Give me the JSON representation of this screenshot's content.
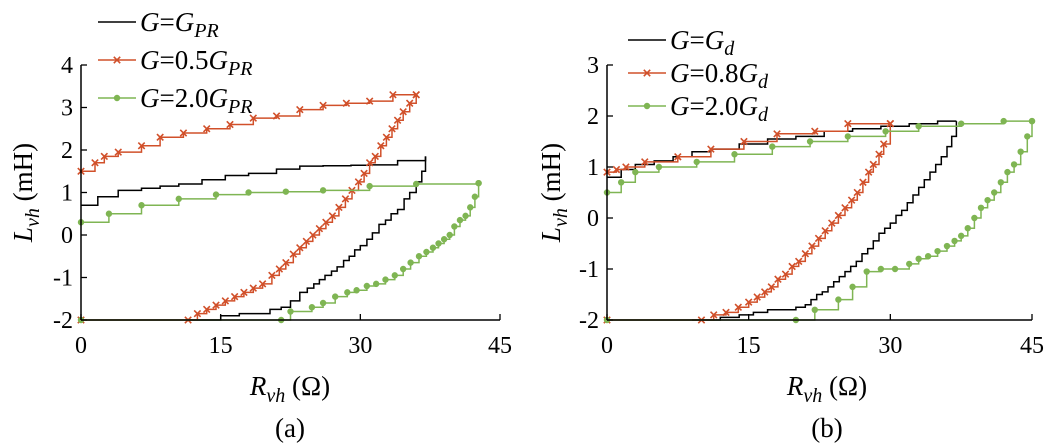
{
  "chart_data": [
    {
      "type": "line",
      "caption": "(a)",
      "xlabel": "R_vh (Ω)",
      "ylabel": "L_vh (mH)",
      "xlim": [
        0,
        45
      ],
      "ylim": [
        -2,
        4
      ],
      "x_ticks": [
        0,
        15,
        30,
        45
      ],
      "y_ticks": [
        -2,
        -1,
        0,
        1,
        2,
        3,
        4
      ],
      "legend_position": "top-left",
      "series": [
        {
          "name": "G=G_PR",
          "legend": {
            "parts": [
              [
                "G",
                "i"
              ],
              [
                "=",
                ""
              ],
              [
                "G",
                "i"
              ],
              [
                "PR",
                "sub"
              ]
            ]
          },
          "color": "#000000",
          "marker": "none",
          "upper": {
            "x": [
              0.0,
              1.8,
              4.0,
              6.5,
              8.5,
              10.5,
              13.0,
              15.5,
              18.0,
              21.0,
              23.5,
              26.0,
              29.0,
              31.0,
              34.0,
              37.0
            ],
            "y": [
              0.7,
              0.9,
              1.05,
              1.1,
              1.15,
              1.2,
              1.3,
              1.4,
              1.45,
              1.55,
              1.62,
              1.63,
              1.64,
              1.65,
              1.75,
              1.85
            ]
          },
          "lower": {
            "x": [
              37.0,
              36.6,
              36.0,
              35.3,
              34.7,
              34.0,
              33.3,
              32.7,
              32.0,
              31.3,
              30.7,
              30.0,
              29.4,
              28.8,
              28.2,
              27.5,
              26.9,
              26.2,
              25.6,
              25.0,
              24.3,
              23.5,
              22.5,
              21.5,
              20.3,
              18.5,
              17.0,
              15.0,
              11.7
            ],
            "y": [
              1.85,
              1.5,
              1.25,
              1.0,
              0.85,
              0.6,
              0.5,
              0.35,
              0.25,
              0.05,
              -0.1,
              -0.25,
              -0.35,
              -0.5,
              -0.6,
              -0.75,
              -0.85,
              -0.95,
              -1.05,
              -1.15,
              -1.25,
              -1.35,
              -1.55,
              -1.7,
              -1.75,
              -1.85,
              -1.85,
              -1.9,
              -2.0
            ]
          }
        },
        {
          "name": "G=0.5G_PR",
          "legend": {
            "parts": [
              [
                "G",
                "i"
              ],
              [
                "=0.5",
                ""
              ],
              [
                "G",
                "i"
              ],
              [
                "PR",
                "sub"
              ]
            ]
          },
          "color": "#d1502a",
          "marker": "x",
          "upper": {
            "x": [
              0.0,
              1.5,
              2.5,
              4.0,
              6.5,
              8.5,
              11.0,
              13.5,
              16.0,
              18.5,
              21.0,
              23.5,
              26.0,
              28.5,
              31.0,
              33.5,
              36.0
            ],
            "y": [
              1.5,
              1.7,
              1.85,
              1.95,
              2.1,
              2.3,
              2.4,
              2.5,
              2.6,
              2.75,
              2.8,
              2.95,
              3.05,
              3.1,
              3.15,
              3.3,
              3.3
            ]
          },
          "lower": {
            "x": [
              36.0,
              35.3,
              34.6,
              34.0,
              33.4,
              32.8,
              32.2,
              31.6,
              31.0,
              30.4,
              29.8,
              29.1,
              28.4,
              27.7,
              27.0,
              26.3,
              25.6,
              24.9,
              24.2,
              23.5,
              22.8,
              22.0,
              21.3,
              20.5,
              19.5,
              18.5,
              17.5,
              16.5,
              15.5,
              14.5,
              13.5,
              12.5,
              11.5,
              0.0
            ],
            "y": [
              3.3,
              3.1,
              2.9,
              2.7,
              2.5,
              2.3,
              2.1,
              1.85,
              1.7,
              1.45,
              1.25,
              1.05,
              0.85,
              0.65,
              0.45,
              0.3,
              0.15,
              0.0,
              -0.15,
              -0.3,
              -0.45,
              -0.65,
              -0.8,
              -0.95,
              -1.15,
              -1.25,
              -1.35,
              -1.45,
              -1.55,
              -1.65,
              -1.75,
              -1.85,
              -2.0,
              -2.0
            ]
          }
        },
        {
          "name": "G=2.0G_PR",
          "legend": {
            "parts": [
              [
                "G",
                "i"
              ],
              [
                "=2.0",
                ""
              ],
              [
                "G",
                "i"
              ],
              [
                "PR",
                "sub"
              ]
            ]
          },
          "color": "#7fb553",
          "marker": "dot",
          "upper": {
            "x": [
              0.0,
              3.0,
              6.5,
              10.5,
              14.5,
              18.0,
              22.0,
              26.0,
              31.0,
              36.0,
              42.7
            ],
            "y": [
              0.3,
              0.5,
              0.7,
              0.85,
              0.95,
              1.0,
              1.02,
              1.05,
              1.15,
              1.2,
              1.22
            ]
          },
          "lower": {
            "x": [
              42.7,
              42.3,
              41.8,
              41.3,
              40.7,
              40.1,
              39.6,
              39.0,
              38.4,
              37.8,
              37.1,
              36.3,
              35.4,
              34.6,
              33.7,
              32.7,
              31.7,
              30.7,
              29.6,
              28.6,
              27.3,
              26.0,
              24.8,
              22.5,
              21.5,
              0.0
            ],
            "y": [
              1.22,
              0.9,
              0.65,
              0.45,
              0.35,
              0.2,
              0.0,
              -0.1,
              -0.2,
              -0.3,
              -0.4,
              -0.5,
              -0.65,
              -0.8,
              -0.95,
              -1.05,
              -1.15,
              -1.2,
              -1.3,
              -1.35,
              -1.45,
              -1.6,
              -1.7,
              -1.8,
              -2.0,
              -2.0
            ]
          }
        }
      ]
    },
    {
      "type": "line",
      "caption": "(b)",
      "xlabel": "R_vh (Ω)",
      "ylabel": "L_vh (mH)",
      "xlim": [
        0,
        45
      ],
      "ylim": [
        -2,
        3
      ],
      "x_ticks": [
        0,
        15,
        30,
        45
      ],
      "y_ticks": [
        -2,
        -1,
        0,
        1,
        2,
        3
      ],
      "legend_position": "top-left",
      "series": [
        {
          "name": "G=G_d",
          "legend": {
            "parts": [
              [
                "G",
                "i"
              ],
              [
                "=",
                ""
              ],
              [
                "G",
                "i"
              ],
              [
                "d",
                "sub-i"
              ]
            ]
          },
          "color": "#000000",
          "marker": "none",
          "upper": {
            "x": [
              0.0,
              1.5,
              3.0,
              5.0,
              7.0,
              9.0,
              11.0,
              14.0,
              17.0,
              20.0,
              23.0,
              26.0,
              29.0,
              32.0,
              35.0,
              37.0
            ],
            "y": [
              0.8,
              0.95,
              1.05,
              1.12,
              1.2,
              1.3,
              1.35,
              1.45,
              1.55,
              1.6,
              1.7,
              1.75,
              1.8,
              1.85,
              1.9,
              1.9
            ]
          },
          "lower": {
            "x": [
              37.0,
              36.5,
              36.0,
              35.4,
              34.8,
              34.2,
              33.6,
              33.0,
              32.4,
              31.8,
              31.2,
              30.6,
              30.0,
              29.4,
              28.8,
              28.2,
              27.6,
              27.0,
              26.4,
              25.8,
              25.2,
              24.6,
              24.0,
              23.4,
              22.8,
              22.2,
              21.6,
              21.0,
              20.0,
              18.5,
              17.0,
              15.5,
              14.0,
              12.0,
              9.0
            ],
            "y": [
              1.9,
              1.6,
              1.4,
              1.2,
              1.05,
              0.9,
              0.75,
              0.6,
              0.45,
              0.3,
              0.15,
              0.05,
              -0.1,
              -0.2,
              -0.3,
              -0.45,
              -0.6,
              -0.7,
              -0.85,
              -0.95,
              -1.05,
              -1.15,
              -1.25,
              -1.35,
              -1.45,
              -1.5,
              -1.6,
              -1.7,
              -1.75,
              -1.8,
              -1.8,
              -1.85,
              -1.9,
              -1.95,
              -2.0
            ]
          }
        },
        {
          "name": "G=0.8G_d",
          "legend": {
            "parts": [
              [
                "G",
                "i"
              ],
              [
                "=0.8",
                ""
              ],
              [
                "G",
                "i"
              ],
              [
                "d",
                "sub-i"
              ]
            ]
          },
          "color": "#d1502a",
          "marker": "x",
          "upper": {
            "x": [
              0.0,
              1.0,
              2.0,
              4.0,
              7.5,
              11.0,
              14.5,
              18.0,
              22.0,
              25.5,
              30.0
            ],
            "y": [
              0.9,
              0.95,
              1.0,
              1.1,
              1.2,
              1.35,
              1.5,
              1.65,
              1.7,
              1.85,
              1.85
            ]
          },
          "lower": {
            "x": [
              30.0,
              29.3,
              28.8,
              28.2,
              27.7,
              27.1,
              26.5,
              25.9,
              25.2,
              24.5,
              23.8,
              23.1,
              22.4,
              21.7,
              21.0,
              20.3,
              19.6,
              18.9,
              18.1,
              17.4,
              16.7,
              15.9,
              15.0,
              13.9,
              12.6,
              11.3,
              10.0,
              0.0
            ],
            "y": [
              1.85,
              1.45,
              1.25,
              1.05,
              0.9,
              0.7,
              0.5,
              0.35,
              0.2,
              0.05,
              -0.1,
              -0.25,
              -0.4,
              -0.55,
              -0.7,
              -0.85,
              -0.95,
              -1.1,
              -1.2,
              -1.35,
              -1.45,
              -1.55,
              -1.65,
              -1.75,
              -1.85,
              -1.9,
              -2.0,
              -2.0
            ]
          }
        },
        {
          "name": "G=2.0G_d",
          "legend": {
            "parts": [
              [
                "G",
                "i"
              ],
              [
                "=2.0",
                ""
              ],
              [
                "G",
                "i"
              ],
              [
                "d",
                "sub-i"
              ]
            ]
          },
          "color": "#7fb553",
          "marker": "dot",
          "upper": {
            "x": [
              0.0,
              1.5,
              3.0,
              5.5,
              9.5,
              13.5,
              17.5,
              21.5,
              25.5,
              29.5,
              33.0,
              37.5,
              42.0,
              45.0
            ],
            "y": [
              0.5,
              0.7,
              0.9,
              1.0,
              1.1,
              1.25,
              1.4,
              1.5,
              1.6,
              1.7,
              1.8,
              1.85,
              1.9,
              1.9
            ]
          },
          "lower": {
            "x": [
              45.0,
              44.5,
              43.8,
              43.1,
              42.4,
              41.7,
              41.0,
              40.3,
              39.6,
              38.9,
              38.2,
              37.5,
              36.8,
              36.0,
              35.0,
              34.0,
              33.0,
              32.0,
              30.5,
              29.0,
              27.5,
              26.0,
              24.5,
              22.0,
              20.0,
              0.0
            ],
            "y": [
              1.9,
              1.6,
              1.3,
              1.05,
              0.9,
              0.7,
              0.5,
              0.35,
              0.2,
              0.0,
              -0.2,
              -0.35,
              -0.45,
              -0.55,
              -0.65,
              -0.75,
              -0.8,
              -0.9,
              -1.0,
              -1.0,
              -1.05,
              -1.35,
              -1.6,
              -1.8,
              -2.0,
              -2.0
            ]
          }
        }
      ]
    }
  ]
}
